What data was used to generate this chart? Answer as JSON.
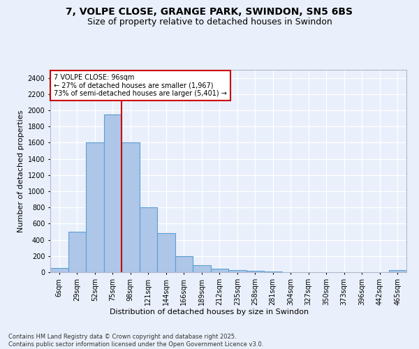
{
  "title": "7, VOLPE CLOSE, GRANGE PARK, SWINDON, SN5 6BS",
  "subtitle": "Size of property relative to detached houses in Swindon",
  "xlabel": "Distribution of detached houses by size in Swindon",
  "ylabel": "Number of detached properties",
  "bar_values": [
    55,
    500,
    1600,
    1950,
    1600,
    800,
    480,
    200,
    90,
    40,
    30,
    20,
    10,
    0,
    0,
    0,
    0,
    0,
    0,
    25
  ],
  "bar_color": "#aec6e8",
  "bar_edge_color": "#5a9fd4",
  "categories": [
    "6sqm",
    "29sqm",
    "52sqm",
    "75sqm",
    "98sqm",
    "121sqm",
    "144sqm",
    "166sqm",
    "189sqm",
    "212sqm",
    "235sqm",
    "258sqm",
    "281sqm",
    "304sqm",
    "327sqm",
    "350sqm",
    "373sqm",
    "396sqm",
    "442sqm",
    "465sqm"
  ],
  "annotation_text": "7 VOLPE CLOSE: 96sqm\n← 27% of detached houses are smaller (1,967)\n73% of semi-detached houses are larger (5,401) →",
  "annotation_box_color": "#ffffff",
  "annotation_box_edge": "#cc0000",
  "vline_color": "#cc0000",
  "vline_x_index": 3.5,
  "ylim": [
    0,
    2500
  ],
  "yticks": [
    0,
    200,
    400,
    600,
    800,
    1000,
    1200,
    1400,
    1600,
    1800,
    2000,
    2200,
    2400
  ],
  "footnote": "Contains HM Land Registry data © Crown copyright and database right 2025.\nContains public sector information licensed under the Open Government Licence v3.0.",
  "bg_color": "#eaf0fb",
  "plot_bg_color": "#eaf0fb",
  "grid_color": "#ffffff",
  "title_fontsize": 10,
  "subtitle_fontsize": 9,
  "tick_fontsize": 7,
  "ylabel_fontsize": 8,
  "xlabel_fontsize": 8,
  "annotation_fontsize": 7,
  "footnote_fontsize": 6
}
